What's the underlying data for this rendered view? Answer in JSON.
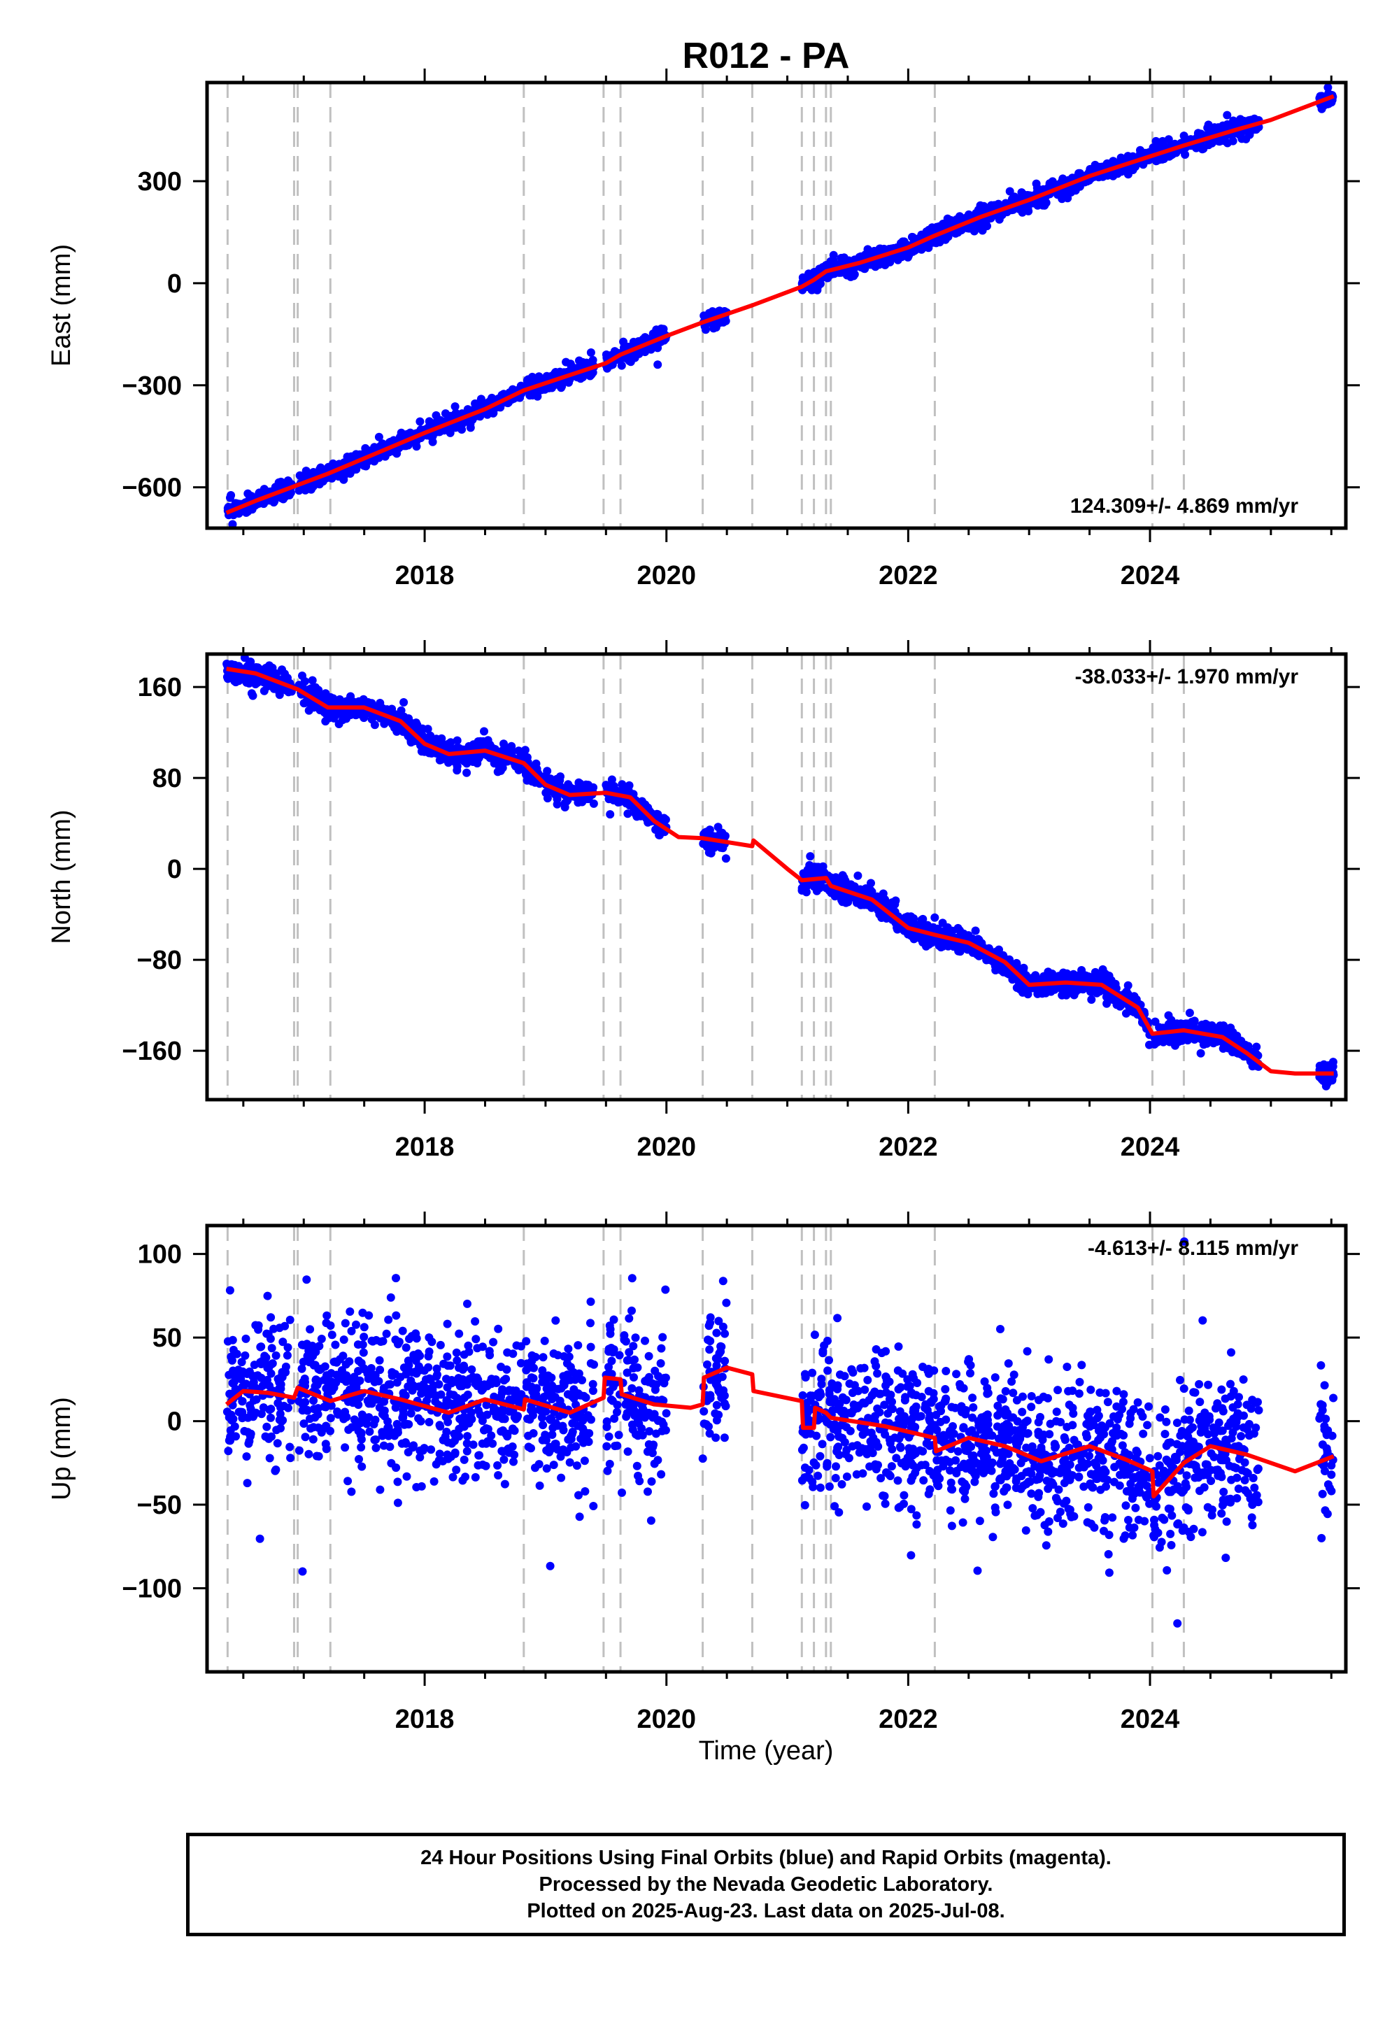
{
  "title": "R012 - PA",
  "xlabel": "Time (year)",
  "footer": {
    "line1": "24 Hour Positions Using Final Orbits (blue) and Rapid Orbits (magenta).",
    "line2": "Processed by the Nevada Geodetic Laboratory.",
    "line3": "Plotted on 2025-Aug-23. Last data on 2025-Jul-08."
  },
  "colors": {
    "final_orbits": "#0000ff",
    "model": "#ff0000",
    "rapid_orbits": "#ff00ff",
    "steps": "#c0c0c0"
  },
  "chart_data": [
    {
      "type": "scatter",
      "panel": "east",
      "ylabel": "East (mm)",
      "xlim": [
        2016.2,
        2025.62
      ],
      "ylim": [
        -720,
        590
      ],
      "xticks": [
        2018,
        2020,
        2022,
        2024
      ],
      "xtick_labels": [
        "2018",
        "2020",
        "2022",
        "2024"
      ],
      "yticks": [
        -600,
        -300,
        0,
        300
      ],
      "ytick_labels": [
        "−600",
        "−300",
        "0",
        "300"
      ],
      "rate_label": "124.309+/- 4.869 mm/yr",
      "rate_position": "bottom-right",
      "step_epochs": [
        2016.37,
        2016.92,
        2016.95,
        2017.22,
        2018.82,
        2019.48,
        2019.62,
        2020.3,
        2020.71,
        2021.12,
        2021.22,
        2021.32,
        2021.36,
        2022.22,
        2024.02,
        2024.28
      ],
      "model": [
        [
          2016.36,
          -675
        ],
        [
          2016.6,
          -640
        ],
        [
          2016.9,
          -600
        ],
        [
          2017.2,
          -560
        ],
        [
          2017.6,
          -500
        ],
        [
          2018.0,
          -440
        ],
        [
          2018.5,
          -370
        ],
        [
          2018.82,
          -315
        ],
        [
          2019.2,
          -270
        ],
        [
          2019.5,
          -235
        ],
        [
          2019.62,
          -210
        ],
        [
          2020.0,
          -155
        ],
        [
          2020.3,
          -115
        ],
        [
          2020.71,
          -65
        ],
        [
          2021.12,
          -10
        ],
        [
          2021.22,
          10
        ],
        [
          2021.32,
          35
        ],
        [
          2021.6,
          60
        ],
        [
          2022.0,
          105
        ],
        [
          2022.22,
          140
        ],
        [
          2022.6,
          195
        ],
        [
          2023.0,
          245
        ],
        [
          2023.5,
          315
        ],
        [
          2024.02,
          375
        ],
        [
          2024.28,
          405
        ],
        [
          2024.7,
          450
        ],
        [
          2025.0,
          480
        ],
        [
          2025.52,
          550
        ]
      ],
      "series": [
        {
          "segments": [
            [
              2016.36,
              2016.9
            ],
            [
              2016.96,
              2017.3
            ],
            [
              2017.3,
              2018.8
            ],
            [
              2018.83,
              2019.4
            ],
            [
              2019.5,
              2019.62
            ],
            [
              2019.63,
              2020.0
            ],
            [
              2020.3,
              2020.5
            ],
            [
              2021.12,
              2022.22
            ],
            [
              2022.23,
              2023.5
            ],
            [
              2023.5,
              2024.0
            ],
            [
              2024.02,
              2024.9
            ],
            [
              2025.4,
              2025.52
            ]
          ],
          "points_per_year": 300,
          "scatter_mm": 13,
          "seed": 11
        }
      ]
    },
    {
      "type": "scatter",
      "panel": "north",
      "ylabel": "North (mm)",
      "xlim": [
        2016.2,
        2025.62
      ],
      "ylim": [
        -203,
        189
      ],
      "xticks": [
        2018,
        2020,
        2022,
        2024
      ],
      "xtick_labels": [
        "2018",
        "2020",
        "2022",
        "2024"
      ],
      "yticks": [
        -160,
        -80,
        0,
        80,
        160
      ],
      "ytick_labels": [
        "−160",
        "−80",
        "0",
        "80",
        "160"
      ],
      "rate_label": "-38.033+/- 1.970 mm/yr",
      "rate_position": "top-right",
      "step_epochs": [
        2016.37,
        2016.92,
        2016.95,
        2017.22,
        2018.82,
        2019.48,
        2019.62,
        2020.3,
        2020.71,
        2021.12,
        2021.22,
        2021.32,
        2021.36,
        2022.22,
        2024.02,
        2024.28
      ],
      "model": [
        [
          2016.36,
          176
        ],
        [
          2016.6,
          172
        ],
        [
          2016.95,
          158
        ],
        [
          2017.2,
          142
        ],
        [
          2017.5,
          142
        ],
        [
          2017.8,
          130
        ],
        [
          2018.0,
          110
        ],
        [
          2018.2,
          101
        ],
        [
          2018.5,
          104
        ],
        [
          2018.82,
          93
        ],
        [
          2019.0,
          74
        ],
        [
          2019.2,
          65
        ],
        [
          2019.5,
          67
        ],
        [
          2019.7,
          63
        ],
        [
          2019.9,
          42
        ],
        [
          2020.1,
          28
        ],
        [
          2020.3,
          27
        ],
        [
          2020.71,
          20
        ],
        [
          2020.72,
          25
        ],
        [
          2021.0,
          0
        ],
        [
          2021.12,
          -10
        ],
        [
          2021.32,
          -8
        ],
        [
          2021.36,
          -15
        ],
        [
          2021.7,
          -27
        ],
        [
          2022.0,
          -52
        ],
        [
          2022.22,
          -58
        ],
        [
          2022.5,
          -65
        ],
        [
          2022.8,
          -82
        ],
        [
          2023.0,
          -102
        ],
        [
          2023.3,
          -100
        ],
        [
          2023.6,
          -102
        ],
        [
          2023.9,
          -122
        ],
        [
          2024.02,
          -145
        ],
        [
          2024.28,
          -142
        ],
        [
          2024.6,
          -148
        ],
        [
          2024.8,
          -162
        ],
        [
          2025.0,
          -178
        ],
        [
          2025.2,
          -180
        ],
        [
          2025.52,
          -180
        ]
      ],
      "series": [
        {
          "segments": [
            [
              2016.36,
              2016.9
            ],
            [
              2016.96,
              2017.3
            ],
            [
              2017.3,
              2018.8
            ],
            [
              2018.83,
              2019.4
            ],
            [
              2019.5,
              2019.62
            ],
            [
              2019.63,
              2020.0
            ],
            [
              2020.3,
              2020.5
            ],
            [
              2021.12,
              2022.22
            ],
            [
              2022.23,
              2023.5
            ],
            [
              2023.5,
              2024.0
            ],
            [
              2024.02,
              2024.9
            ],
            [
              2025.4,
              2025.52
            ]
          ],
          "points_per_year": 300,
          "scatter_mm": 5,
          "seed": 23
        }
      ]
    },
    {
      "type": "scatter",
      "panel": "up",
      "ylabel": "Up (mm)",
      "xlim": [
        2016.2,
        2025.62
      ],
      "ylim": [
        -150,
        117
      ],
      "xticks": [
        2018,
        2020,
        2022,
        2024
      ],
      "xtick_labels": [
        "2018",
        "2020",
        "2022",
        "2024"
      ],
      "yticks": [
        -100,
        -50,
        0,
        50,
        100
      ],
      "ytick_labels": [
        "−100",
        "−50",
        "0",
        "50",
        "100"
      ],
      "rate_label": "-4.613+/- 8.115 mm/yr",
      "rate_position": "top-right",
      "step_epochs": [
        2016.37,
        2016.92,
        2016.95,
        2017.22,
        2018.82,
        2019.48,
        2019.62,
        2020.3,
        2020.71,
        2021.12,
        2021.22,
        2021.32,
        2021.36,
        2022.22,
        2024.02,
        2024.28
      ],
      "model": [
        [
          2016.36,
          10
        ],
        [
          2016.5,
          18
        ],
        [
          2016.7,
          17
        ],
        [
          2016.92,
          14
        ],
        [
          2016.95,
          20
        ],
        [
          2017.22,
          12
        ],
        [
          2017.5,
          18
        ],
        [
          2017.8,
          13
        ],
        [
          2018.2,
          5
        ],
        [
          2018.5,
          13
        ],
        [
          2018.82,
          7
        ],
        [
          2018.83,
          13
        ],
        [
          2019.2,
          5
        ],
        [
          2019.48,
          14
        ],
        [
          2019.49,
          26
        ],
        [
          2019.62,
          25
        ],
        [
          2019.63,
          16
        ],
        [
          2019.9,
          10
        ],
        [
          2020.2,
          8
        ],
        [
          2020.3,
          10
        ],
        [
          2020.31,
          26
        ],
        [
          2020.5,
          32
        ],
        [
          2020.71,
          28
        ],
        [
          2020.72,
          18
        ],
        [
          2021.12,
          12
        ],
        [
          2021.13,
          -4
        ],
        [
          2021.22,
          -4
        ],
        [
          2021.23,
          8
        ],
        [
          2021.32,
          5
        ],
        [
          2021.36,
          2
        ],
        [
          2021.8,
          -3
        ],
        [
          2022.22,
          -10
        ],
        [
          2022.23,
          -18
        ],
        [
          2022.5,
          -10
        ],
        [
          2022.8,
          -15
        ],
        [
          2023.1,
          -24
        ],
        [
          2023.5,
          -15
        ],
        [
          2023.8,
          -23
        ],
        [
          2024.02,
          -30
        ],
        [
          2024.03,
          -45
        ],
        [
          2024.28,
          -25
        ],
        [
          2024.5,
          -15
        ],
        [
          2024.8,
          -20
        ],
        [
          2025.2,
          -30
        ],
        [
          2025.52,
          -21
        ]
      ],
      "series": [
        {
          "segments": [
            [
              2016.36,
              2016.9
            ],
            [
              2016.96,
              2017.3
            ],
            [
              2017.3,
              2018.8
            ],
            [
              2018.83,
              2019.4
            ],
            [
              2019.5,
              2019.62
            ],
            [
              2019.63,
              2020.0
            ],
            [
              2020.3,
              2020.5
            ],
            [
              2021.12,
              2022.22
            ],
            [
              2022.23,
              2023.5
            ],
            [
              2023.5,
              2024.0
            ],
            [
              2024.02,
              2024.9
            ],
            [
              2025.4,
              2025.52
            ]
          ],
          "points_per_year": 300,
          "scatter_mm": 22,
          "seed": 37
        }
      ]
    }
  ]
}
